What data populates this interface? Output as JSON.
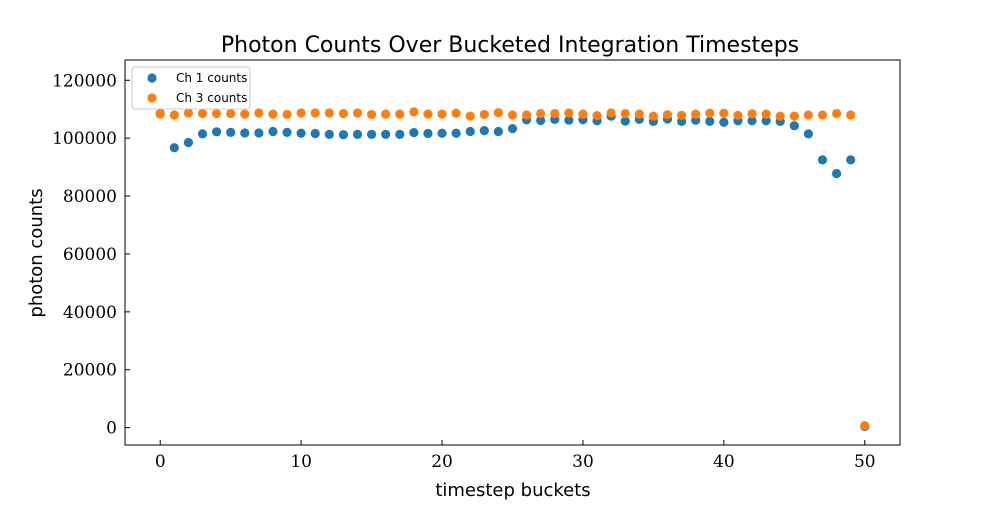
{
  "chart_data": {
    "type": "scatter",
    "title": "Photon Counts Over Bucketed Integration Timesteps",
    "xlabel": "timestep buckets",
    "ylabel": "photon counts",
    "xlim": [
      -2.5,
      52.5
    ],
    "ylim": [
      -6000,
      127000
    ],
    "x_ticks": [
      0,
      10,
      20,
      30,
      40,
      50
    ],
    "y_ticks": [
      0,
      20000,
      40000,
      60000,
      80000,
      100000,
      120000
    ],
    "grid": false,
    "legend_position": "top-left",
    "series": [
      {
        "name": "Ch 1 counts",
        "color": "#1f77b4",
        "x": [
          0,
          1,
          2,
          3,
          4,
          5,
          6,
          7,
          8,
          9,
          10,
          11,
          12,
          13,
          14,
          15,
          16,
          17,
          18,
          19,
          20,
          21,
          22,
          23,
          24,
          25,
          26,
          27,
          28,
          29,
          30,
          31,
          32,
          33,
          34,
          35,
          36,
          37,
          38,
          39,
          40,
          41,
          42,
          43,
          44,
          45,
          46,
          47,
          48,
          49,
          50
        ],
        "y": [
          108500,
          96700,
          98500,
          101500,
          102200,
          102000,
          101800,
          101800,
          102300,
          102000,
          101700,
          101600,
          101300,
          101200,
          101300,
          101300,
          101300,
          101300,
          101900,
          101600,
          101700,
          101700,
          102300,
          102600,
          102300,
          103300,
          106300,
          106100,
          106500,
          106200,
          106400,
          106000,
          107600,
          105900,
          106500,
          105800,
          106600,
          105800,
          106200,
          105800,
          105500,
          106000,
          106000,
          106000,
          105800,
          104300,
          101500,
          92500,
          87800,
          92500,
          400
        ]
      },
      {
        "name": "Ch 3 counts",
        "color": "#ff7f0e",
        "x": [
          0,
          1,
          2,
          3,
          4,
          5,
          6,
          7,
          8,
          9,
          10,
          11,
          12,
          13,
          14,
          15,
          16,
          17,
          18,
          19,
          20,
          21,
          22,
          23,
          24,
          25,
          26,
          27,
          28,
          29,
          30,
          31,
          32,
          33,
          34,
          35,
          36,
          37,
          38,
          39,
          40,
          41,
          42,
          43,
          44,
          45,
          46,
          47,
          48,
          49,
          50
        ],
        "y": [
          108300,
          108000,
          108700,
          108500,
          108500,
          108500,
          108300,
          108700,
          108300,
          108200,
          108700,
          108700,
          108700,
          108500,
          108700,
          108200,
          108300,
          108300,
          109100,
          108300,
          108300,
          108600,
          107600,
          108200,
          108800,
          108000,
          108000,
          108500,
          108500,
          108700,
          108300,
          107800,
          108700,
          108500,
          108300,
          107600,
          108100,
          107900,
          108300,
          108600,
          108600,
          107900,
          108400,
          108300,
          107600,
          107600,
          108000,
          108000,
          108500,
          108000,
          700
        ]
      }
    ]
  }
}
